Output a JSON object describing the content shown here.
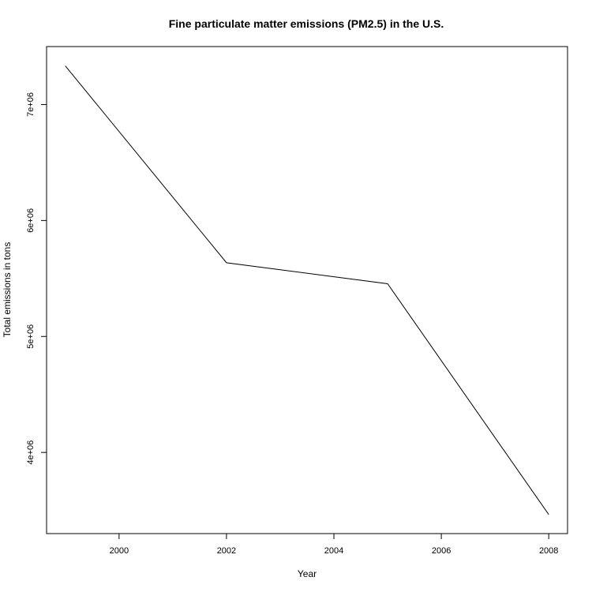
{
  "chart_data": {
    "type": "line",
    "title": "Fine particulate matter emissions (PM2.5) in the U.S.",
    "xlabel": "Year",
    "ylabel": "Total emissions in tons",
    "x": [
      1999,
      2002,
      2005,
      2008
    ],
    "series": [
      {
        "values": [
          7332967,
          5635780,
          5454703,
          3464206
        ]
      }
    ],
    "xlim": [
      1998.65,
      2008.35
    ],
    "ylim": [
      3300000,
      7500000
    ],
    "x_ticks": [
      2000,
      2002,
      2004,
      2006,
      2008
    ],
    "x_tick_labels": [
      "2000",
      "2002",
      "2004",
      "2006",
      "2008"
    ],
    "y_ticks": [
      4000000,
      5000000,
      6000000,
      7000000
    ],
    "y_tick_labels": [
      "4e+06",
      "5e+06",
      "6e+06",
      "7e+06"
    ],
    "line_color": "#000000",
    "grid": false,
    "legend": "none"
  }
}
